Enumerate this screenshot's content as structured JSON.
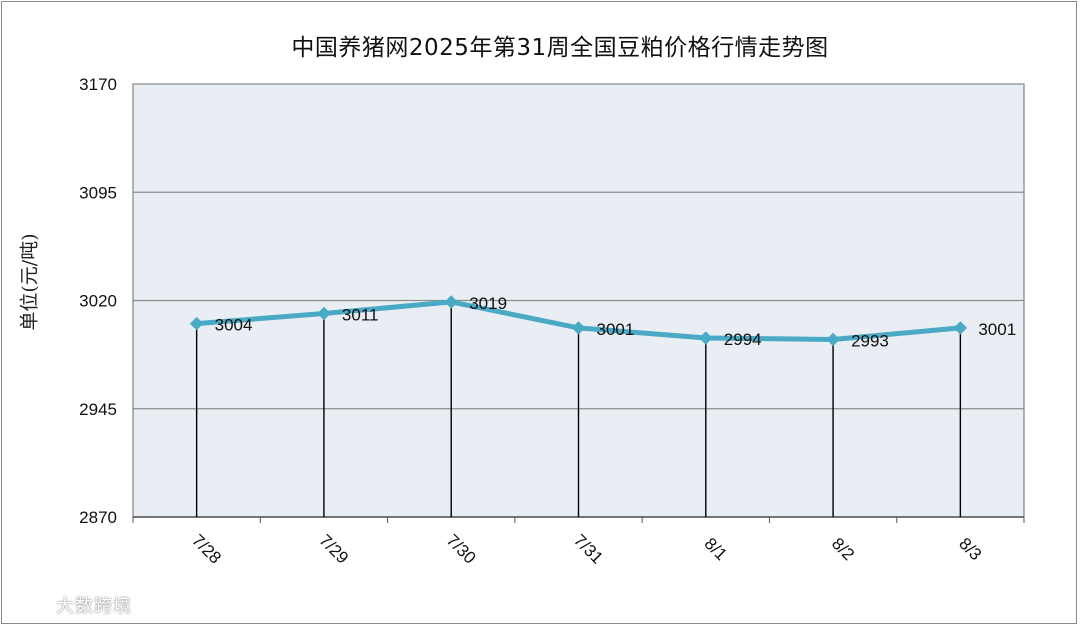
{
  "chart_data": {
    "type": "line",
    "title": "中国养猪网2025年第31周全国豆粕价格行情走势图",
    "xlabel": "",
    "ylabel": "单位(元/吨)",
    "categories": [
      "7/28",
      "7/29",
      "7/30",
      "7/31",
      "8/1",
      "8/2",
      "8/3"
    ],
    "series": [
      {
        "values": [
          3004,
          3011,
          3019,
          3001,
          2994,
          2993,
          3001
        ]
      }
    ],
    "ylim": [
      2870,
      3170
    ],
    "yticks": [
      2870,
      2945,
      3020,
      3095,
      3170
    ],
    "grid": "horizontal",
    "legend": "none",
    "colors": {
      "line": "#4aa9c4",
      "plot_background": "#e8eef3",
      "grid": "#8c8c8c",
      "drop_line": "#000000"
    }
  },
  "watermark": {
    "text": "大数跨境"
  }
}
